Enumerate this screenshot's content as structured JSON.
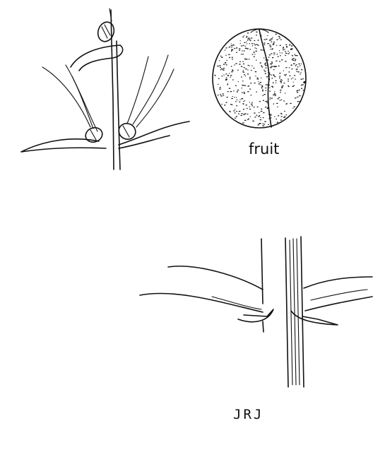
{
  "labels": {
    "fruit": "fruit",
    "initials": "JRJ"
  },
  "ink_color": "#111111",
  "background_color": "#ffffff"
}
